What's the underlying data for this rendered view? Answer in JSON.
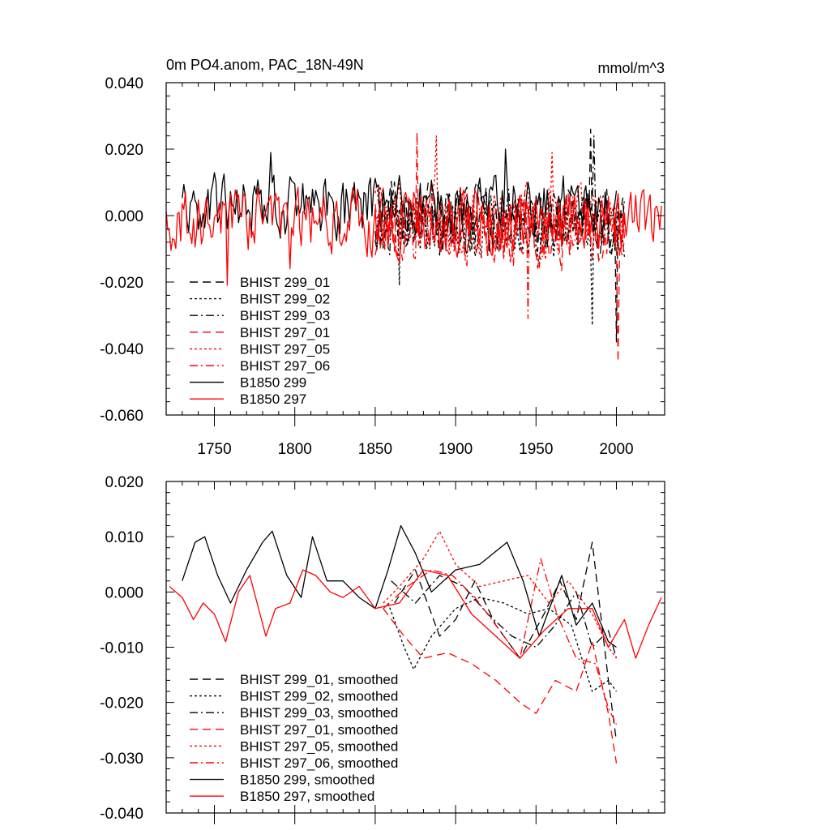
{
  "chart_data": [
    {
      "type": "line",
      "title": "0m PO4.anom, PAC_18N-49N",
      "units": "mmol/m^3",
      "xlim": [
        1720,
        2030
      ],
      "ylim": [
        -0.06,
        0.04
      ],
      "xticks": [
        1750,
        1800,
        1850,
        1900,
        1950,
        2000
      ],
      "xtick_labels": [
        "1750",
        "1800",
        "1850",
        "1900",
        "1950",
        "2000"
      ],
      "yticks": [
        -0.06,
        -0.04,
        -0.02,
        0.0,
        0.02,
        0.04
      ],
      "ytick_labels": [
        "-0.060",
        "-0.040",
        "-0.020",
        "0.000",
        "0.020",
        "0.040"
      ],
      "legend_position": "bottom-left",
      "series": [
        {
          "name": "BHIST 299_01",
          "color": "#000000",
          "dash": "dashed",
          "start": 1850,
          "end": 2005,
          "mean": -0.002,
          "amp": 0.009,
          "seed": 11,
          "spikes": [
            [
              1984,
              0.026
            ],
            [
              2000,
              -0.038
            ]
          ]
        },
        {
          "name": "BHIST 299_02",
          "color": "#000000",
          "dash": "dotted",
          "start": 1850,
          "end": 2005,
          "mean": -0.004,
          "amp": 0.008,
          "seed": 12,
          "spikes": [
            [
              1865,
              -0.021
            ],
            [
              1985,
              -0.033
            ]
          ]
        },
        {
          "name": "BHIST 299_03",
          "color": "#000000",
          "dash": "dashdot",
          "start": 1850,
          "end": 2005,
          "mean": -0.002,
          "amp": 0.008,
          "seed": 13,
          "spikes": [
            [
              1986,
              0.024
            ]
          ]
        },
        {
          "name": "BHIST 297_01",
          "color": "#ff0000",
          "dash": "dashed",
          "start": 1850,
          "end": 2005,
          "mean": -0.004,
          "amp": 0.009,
          "seed": 21,
          "spikes": [
            [
              1876,
              0.025
            ],
            [
              2001,
              -0.044
            ]
          ]
        },
        {
          "name": "BHIST 297_05",
          "color": "#ff0000",
          "dash": "dotted",
          "start": 1850,
          "end": 2005,
          "mean": -0.002,
          "amp": 0.009,
          "seed": 22,
          "spikes": [
            [
              1888,
              0.024
            ],
            [
              1960,
              0.019
            ]
          ]
        },
        {
          "name": "BHIST 297_06",
          "color": "#ff0000",
          "dash": "dashdot",
          "start": 1850,
          "end": 2005,
          "mean": -0.004,
          "amp": 0.009,
          "seed": 23,
          "spikes": [
            [
              1945,
              -0.031
            ]
          ]
        },
        {
          "name": "B1850 299",
          "color": "#000000",
          "dash": "solid",
          "start": 1730,
          "end": 2000,
          "mean": 0.003,
          "amp": 0.008,
          "seed": 31,
          "spikes": [
            [
              1785,
              0.019
            ],
            [
              1931,
              0.02
            ]
          ]
        },
        {
          "name": "B1850 297",
          "color": "#ff0000",
          "dash": "solid",
          "start": 1720,
          "end": 2028,
          "mean": -0.002,
          "amp": 0.008,
          "seed": 32,
          "spikes": [
            [
              1758,
              -0.021
            ],
            [
              1797,
              -0.016
            ]
          ]
        }
      ]
    },
    {
      "type": "line",
      "xlim": [
        1720,
        2030
      ],
      "ylim": [
        -0.04,
        0.02
      ],
      "xticks": [
        1750,
        1800,
        1850,
        1900,
        1950,
        2000
      ],
      "yticks": [
        -0.04,
        -0.03,
        -0.02,
        -0.01,
        0.0,
        0.01,
        0.02
      ],
      "ytick_labels": [
        "-0.040",
        "-0.030",
        "-0.020",
        "-0.010",
        "0.000",
        "0.010",
        "0.020"
      ],
      "legend_position": "bottom-left",
      "series": [
        {
          "name": "BHIST 299_01, smoothed",
          "color": "#000000",
          "dash": "dashed",
          "x": [
            1862,
            1875,
            1890,
            1900,
            1912,
            1925,
            1940,
            1955,
            1965,
            1975,
            1985,
            1995,
            2000
          ],
          "y": [
            -0.002,
            0.004,
            -0.008,
            -0.005,
            0.002,
            -0.006,
            -0.012,
            -0.004,
            0.002,
            -0.005,
            0.009,
            -0.016,
            -0.027
          ]
        },
        {
          "name": "BHIST 299_02, smoothed",
          "color": "#000000",
          "dash": "dotted",
          "x": [
            1858,
            1868,
            1874,
            1885,
            1900,
            1915,
            1930,
            1945,
            1958,
            1972,
            1985,
            1995,
            2000
          ],
          "y": [
            -0.002,
            -0.01,
            -0.014,
            -0.008,
            -0.003,
            -0.001,
            -0.002,
            -0.004,
            -0.003,
            -0.006,
            -0.018,
            -0.016,
            -0.018
          ]
        },
        {
          "name": "BHIST 299_03, smoothed",
          "color": "#000000",
          "dash": "dashdot",
          "x": [
            1860,
            1875,
            1890,
            1905,
            1920,
            1935,
            1950,
            1962,
            1975,
            1985,
            1995,
            2000
          ],
          "y": [
            0.002,
            -0.002,
            0.003,
            0.001,
            -0.004,
            -0.008,
            -0.01,
            -0.006,
            0.0,
            -0.01,
            -0.007,
            -0.012
          ]
        },
        {
          "name": "BHIST 297_01, smoothed",
          "color": "#ff0000",
          "dash": "dashed",
          "x": [
            1855,
            1868,
            1880,
            1895,
            1910,
            1925,
            1940,
            1950,
            1962,
            1975,
            1985,
            1995,
            2000
          ],
          "y": [
            -0.003,
            -0.008,
            -0.012,
            -0.011,
            -0.013,
            -0.016,
            -0.02,
            -0.022,
            -0.016,
            -0.018,
            -0.009,
            -0.022,
            -0.031
          ]
        },
        {
          "name": "BHIST 297_05, smoothed",
          "color": "#ff0000",
          "dash": "dotted",
          "x": [
            1855,
            1865,
            1880,
            1890,
            1900,
            1915,
            1930,
            1945,
            1958,
            1970,
            1985,
            1995,
            2000
          ],
          "y": [
            -0.002,
            0.001,
            0.006,
            0.011,
            0.005,
            0.001,
            0.002,
            0.003,
            -0.002,
            0.002,
            -0.004,
            -0.01,
            -0.012
          ]
        },
        {
          "name": "BHIST 297_06, smoothed",
          "color": "#ff0000",
          "dash": "dashdot",
          "x": [
            1855,
            1870,
            1885,
            1898,
            1912,
            1925,
            1940,
            1953,
            1963,
            1975,
            1987,
            1995,
            2000
          ],
          "y": [
            -0.003,
            0.001,
            0.004,
            0.003,
            -0.001,
            -0.006,
            -0.012,
            0.006,
            -0.004,
            -0.012,
            -0.013,
            -0.021,
            -0.024
          ]
        },
        {
          "name": "B1850 299, smoothed",
          "color": "#000000",
          "dash": "solid",
          "x": [
            1730,
            1738,
            1744,
            1752,
            1760,
            1770,
            1780,
            1786,
            1795,
            1804,
            1811,
            1820,
            1830,
            1840,
            1850,
            1858,
            1866,
            1875,
            1885,
            1900,
            1915,
            1932,
            1942,
            1952,
            1966,
            1975,
            1985,
            1995,
            2000
          ],
          "y": [
            0.002,
            0.009,
            0.01,
            0.003,
            -0.002,
            0.004,
            0.009,
            0.011,
            0.003,
            -0.001,
            0.01,
            0.002,
            0.002,
            -0.001,
            -0.003,
            0.004,
            0.012,
            0.007,
            0.0,
            0.004,
            0.005,
            0.009,
            0.002,
            -0.008,
            0.003,
            -0.006,
            -0.002,
            -0.009,
            -0.01
          ]
        },
        {
          "name": "B1850 297, smoothed",
          "color": "#ff0000",
          "dash": "solid",
          "x": [
            1722,
            1730,
            1737,
            1743,
            1750,
            1757,
            1765,
            1772,
            1782,
            1788,
            1797,
            1805,
            1813,
            1822,
            1830,
            1840,
            1850,
            1865,
            1880,
            1895,
            1910,
            1925,
            1940,
            1955,
            1970,
            1985,
            1995,
            2005,
            2012,
            2020,
            2028
          ],
          "y": [
            0.001,
            -0.001,
            -0.005,
            -0.002,
            -0.004,
            -0.009,
            0.0,
            0.003,
            -0.008,
            -0.003,
            -0.002,
            0.004,
            0.003,
            0.0,
            -0.001,
            0.001,
            -0.003,
            -0.002,
            0.004,
            0.003,
            -0.004,
            -0.008,
            -0.012,
            -0.007,
            -0.003,
            -0.003,
            -0.01,
            -0.005,
            -0.012,
            -0.006,
            -0.001
          ]
        }
      ]
    }
  ]
}
